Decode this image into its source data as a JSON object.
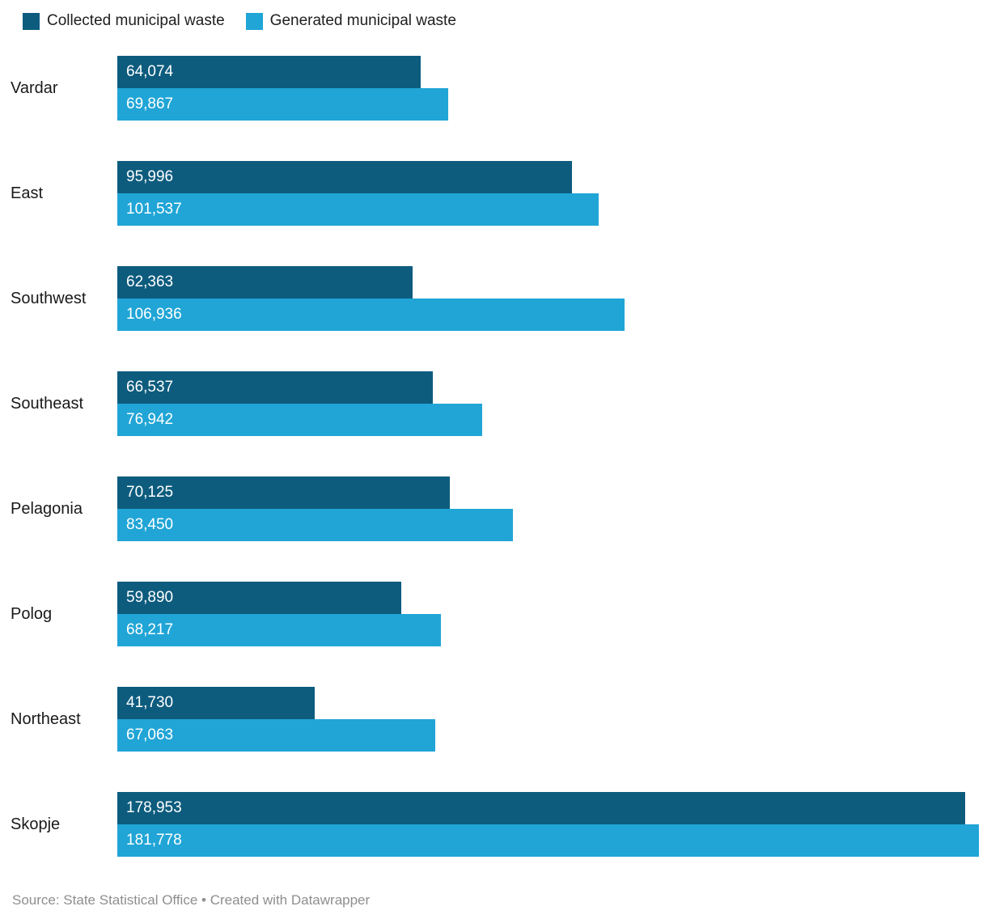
{
  "legend": {
    "items": [
      {
        "label": "Collected municipal waste",
        "color": "#0d5c7e"
      },
      {
        "label": "Generated municipal waste",
        "color": "#20a5d6"
      }
    ]
  },
  "chart_data": {
    "type": "bar",
    "orientation": "horizontal",
    "title": "",
    "categories": [
      "Vardar",
      "East",
      "Southwest",
      "Southeast",
      "Pelagonia",
      "Polog",
      "Northeast",
      "Skopje"
    ],
    "series": [
      {
        "name": "Collected municipal waste",
        "color": "#0d5c7e",
        "values": [
          64074,
          95996,
          62363,
          66537,
          70125,
          59890,
          41730,
          178953
        ],
        "labels": [
          "64,074",
          "95,996",
          "62,363",
          "66,537",
          "70,125",
          "59,890",
          "41,730",
          "178,953"
        ]
      },
      {
        "name": "Generated municipal waste",
        "color": "#20a5d6",
        "values": [
          69867,
          101537,
          106936,
          76942,
          83450,
          68217,
          67063,
          181778
        ],
        "labels": [
          "69,867",
          "101,537",
          "106,936",
          "76,942",
          "83,450",
          "68,217",
          "67,063",
          "181,778"
        ]
      }
    ],
    "xmax": 181778,
    "grid": false,
    "legend_position": "top",
    "value_labels": "inside-left"
  },
  "footer": {
    "source_text": "Source: State Statistical Office • Created with Datawrapper"
  }
}
